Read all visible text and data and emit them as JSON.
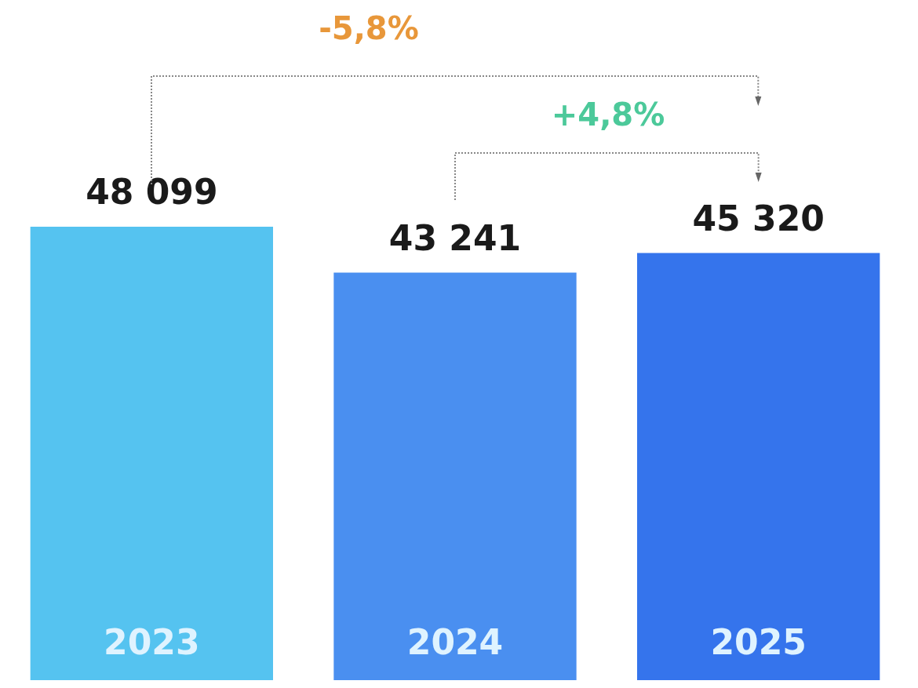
{
  "chart_data": {
    "type": "bar",
    "categories": [
      "2023",
      "2024",
      "2025"
    ],
    "values": [
      48099,
      43241,
      45320
    ],
    "colors": [
      "#55c3f0",
      "#4a8ff0",
      "#3574ec"
    ],
    "value_labels": [
      "48 099",
      "43 241",
      "45 320"
    ],
    "annotations": [
      "-5,8%",
      "+4,8%"
    ],
    "legend": false
  }
}
